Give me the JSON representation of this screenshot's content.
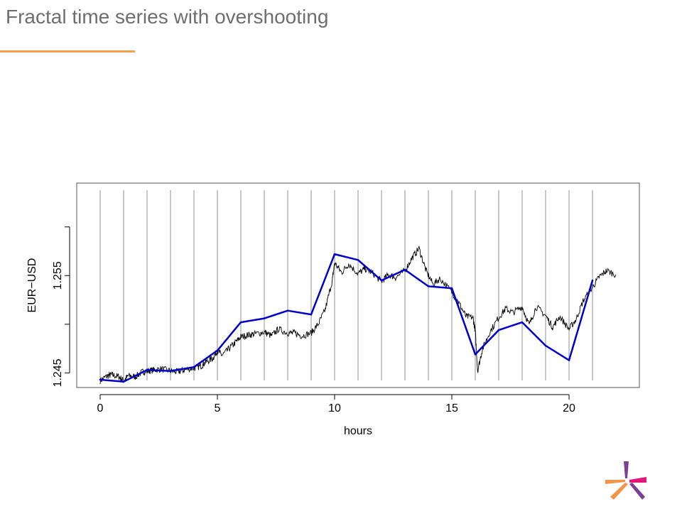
{
  "slide": {
    "title": "Fractal time series with overshooting"
  },
  "colors": {
    "title_text": "#6e6e6e",
    "accent_rule": "#f0a050",
    "price_series": "#000000",
    "overshoot_series": "#0000cc",
    "hour_gridlines": "#aaaaaa",
    "logo_orange": "#f2944a",
    "logo_pink": "#e3177a",
    "logo_purple": "#7b3f98"
  },
  "logo": {
    "icon": "star-logo-icon"
  },
  "chart_data": {
    "type": "line",
    "title": "",
    "xlabel": "hours",
    "ylabel": "EUR−USD",
    "xlim": [
      -1.0,
      23.0
    ],
    "ylim": [
      1.2435,
      1.2645
    ],
    "x_ticks": [
      0,
      5,
      10,
      15,
      20
    ],
    "x_tick_labels": [
      "0",
      "5",
      "10",
      "15",
      "20"
    ],
    "y_ticks": [
      1.245,
      1.25,
      1.255,
      1.26
    ],
    "y_tick_labels": [
      {
        "value": 1.245,
        "label": "1.245"
      },
      {
        "value": 1.25,
        "label": ""
      },
      {
        "value": 1.255,
        "label": "1.255"
      },
      {
        "value": 1.26,
        "label": ""
      }
    ],
    "vertical_gridlines_at_hours": [
      0,
      1,
      2,
      3,
      4,
      5,
      6,
      7,
      8,
      9,
      10,
      11,
      12,
      13,
      14,
      15,
      16,
      17,
      18,
      19,
      20,
      21
    ],
    "grid": "vertical lines at each hour",
    "series": [
      {
        "kind": "price",
        "x": [
          0,
          0.3,
          0.5,
          0.8,
          1,
          1.2,
          1.5,
          1.8,
          2,
          2.3,
          2.6,
          3,
          3.3,
          3.6,
          4,
          4.3,
          4.5,
          4.8,
          5,
          5.2,
          5.5,
          5.8,
          6,
          6.3,
          6.6,
          7,
          7.3,
          7.6,
          8,
          8.3,
          8.6,
          9,
          9.3,
          9.6,
          9.9,
          10,
          10.3,
          10.6,
          11,
          11.3,
          11.6,
          12,
          12.3,
          12.6,
          13,
          13.3,
          13.6,
          13.9,
          14.2,
          14.5,
          15,
          15.3,
          15.6,
          15.9,
          16,
          16.1,
          16.3,
          16.6,
          17,
          17.3,
          17.6,
          18,
          18.3,
          18.6,
          19,
          19.3,
          19.6,
          20,
          20.3,
          20.6,
          21,
          21.3,
          21.6,
          22
        ],
        "y": [
          1.2442,
          1.2447,
          1.2448,
          1.2446,
          1.2442,
          1.2447,
          1.2446,
          1.2451,
          1.2452,
          1.2453,
          1.2454,
          1.2452,
          1.2451,
          1.2453,
          1.2455,
          1.2457,
          1.2461,
          1.2465,
          1.2473,
          1.2468,
          1.2475,
          1.2482,
          1.2487,
          1.2489,
          1.249,
          1.2492,
          1.2488,
          1.2495,
          1.2491,
          1.2491,
          1.2488,
          1.2491,
          1.25,
          1.2515,
          1.2545,
          1.2563,
          1.2553,
          1.2562,
          1.2552,
          1.2557,
          1.2553,
          1.2544,
          1.2551,
          1.2548,
          1.2555,
          1.2568,
          1.2578,
          1.2555,
          1.2541,
          1.2547,
          1.2533,
          1.2522,
          1.2508,
          1.2507,
          1.2493,
          1.2452,
          1.2474,
          1.2491,
          1.2507,
          1.2516,
          1.2512,
          1.2518,
          1.2499,
          1.2518,
          1.2509,
          1.2497,
          1.2508,
          1.2495,
          1.2505,
          1.2524,
          1.2538,
          1.2549,
          1.2555,
          1.2551
        ]
      },
      {
        "kind": "overshoot",
        "x": [
          0,
          1,
          2,
          3,
          4,
          5,
          6,
          7,
          8,
          9,
          10,
          11,
          12,
          13,
          14,
          15,
          16,
          17,
          18,
          19,
          20,
          21
        ],
        "y": [
          1.2443,
          1.2441,
          1.2453,
          1.2452,
          1.2456,
          1.2473,
          1.2502,
          1.2506,
          1.2514,
          1.251,
          1.2572,
          1.2566,
          1.2545,
          1.2556,
          1.2539,
          1.2537,
          1.2469,
          1.2494,
          1.2502,
          1.2478,
          1.2463,
          1.2545
        ]
      }
    ]
  }
}
